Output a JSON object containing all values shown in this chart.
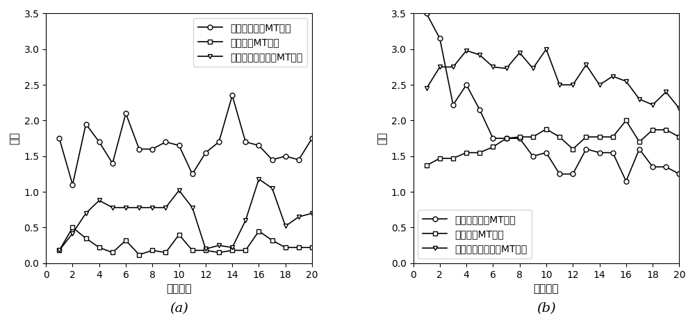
{
  "x": [
    1,
    2,
    3,
    4,
    5,
    6,
    7,
    8,
    9,
    10,
    11,
    12,
    13,
    14,
    15,
    16,
    17,
    18,
    19,
    20
  ],
  "a_circle": [
    1.75,
    1.1,
    1.95,
    1.7,
    1.4,
    2.1,
    1.6,
    1.6,
    1.7,
    1.65,
    1.25,
    1.55,
    1.7,
    2.35,
    1.7,
    1.65,
    1.45,
    1.5,
    1.45,
    1.75
  ],
  "a_square": [
    0.18,
    0.5,
    0.35,
    0.22,
    0.15,
    0.32,
    0.12,
    0.18,
    0.15,
    0.4,
    0.18,
    0.18,
    0.15,
    0.18,
    0.18,
    0.45,
    0.32,
    0.22,
    0.22,
    0.22
  ],
  "a_triangle": [
    0.18,
    0.42,
    0.7,
    0.88,
    0.78,
    0.78,
    0.78,
    0.78,
    0.78,
    1.02,
    0.78,
    0.2,
    0.25,
    0.22,
    0.6,
    1.18,
    1.05,
    0.52,
    0.65,
    0.7
  ],
  "b_circle": [
    3.5,
    3.15,
    2.22,
    2.5,
    2.15,
    1.75,
    1.75,
    1.75,
    1.5,
    1.55,
    1.25,
    1.25,
    1.6,
    1.55,
    1.55,
    1.15,
    1.6,
    1.35,
    1.35,
    1.25
  ],
  "b_square": [
    1.37,
    1.47,
    1.47,
    1.55,
    1.55,
    1.63,
    1.75,
    1.77,
    1.77,
    1.88,
    1.77,
    1.6,
    1.77,
    1.77,
    1.77,
    2.0,
    1.7,
    1.87,
    1.87,
    1.77
  ],
  "b_triangle": [
    2.45,
    2.75,
    2.75,
    2.98,
    2.92,
    2.75,
    2.73,
    2.95,
    2.73,
    3.0,
    2.5,
    2.5,
    2.78,
    2.5,
    2.62,
    2.55,
    2.3,
    2.22,
    2.4,
    2.17
  ],
  "legend_labels": [
    "未受到干扰的MT信号",
    "方波干扰MT信号",
    "充放电三角波干扰MT信号"
  ],
  "xlabel": "尺度因子",
  "ylabel": "熵値",
  "label_a": "(a)",
  "label_b": "(b)",
  "xlim": [
    0,
    20
  ],
  "ylim": [
    0,
    3.5
  ],
  "xticks": [
    0,
    2,
    4,
    6,
    8,
    10,
    12,
    14,
    16,
    18,
    20
  ],
  "yticks": [
    0,
    0.5,
    1.0,
    1.5,
    2.0,
    2.5,
    3.0,
    3.5
  ],
  "line_color": "#000000",
  "marker_circle": "o",
  "marker_square": "s",
  "marker_triangle": "v",
  "linewidth": 1.2,
  "markersize": 5,
  "fontsize_label": 11,
  "fontsize_tick": 10,
  "fontsize_legend": 9,
  "fontsize_sublabel": 14
}
